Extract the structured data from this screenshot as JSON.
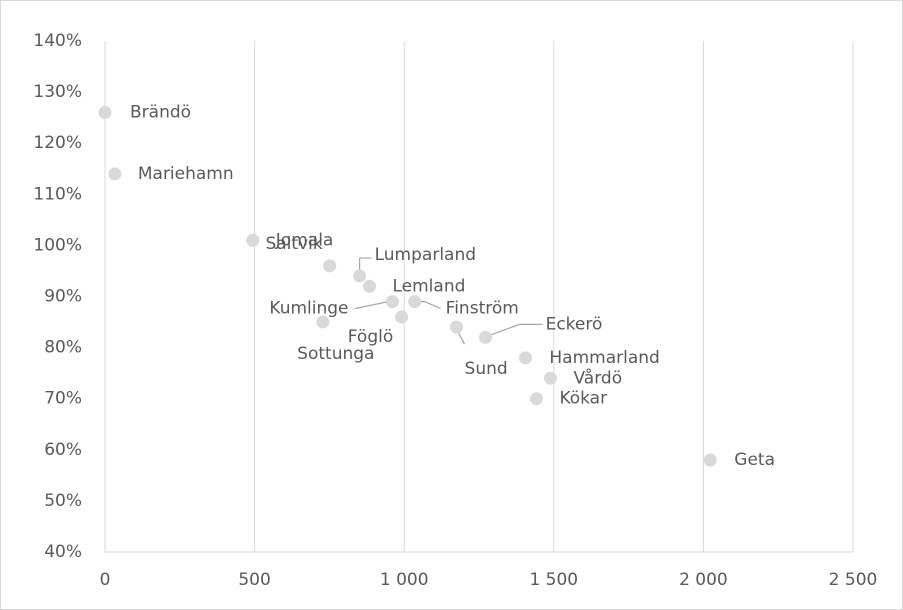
{
  "chart_data": {
    "type": "scatter",
    "labels": [
      "Brändö",
      "Mariehamn",
      "Jomala",
      "Saltvik",
      "Lumparland",
      "Lemland",
      "Kumlinge",
      "Finström",
      "Föglö",
      "Sottunga",
      "Sund",
      "Eckerö",
      "Hammarland",
      "Vårdö",
      "Kökar",
      "Geta"
    ],
    "x": [
      0,
      33,
      494,
      751,
      851,
      884,
      961,
      1035,
      991,
      728,
      1175,
      1272,
      1405,
      1489,
      1442,
      2023
    ],
    "values": [
      126,
      114,
      101,
      96,
      94,
      92,
      89,
      89,
      86,
      85,
      84,
      82,
      78,
      74,
      70,
      58
    ],
    "color": "#d9d9d9",
    "xlim": [
      0,
      2500
    ],
    "xticks": [
      0,
      500,
      {
        "value": 1000,
        "label": "1 000"
      },
      {
        "value": 1500,
        "label": "1 500"
      },
      {
        "value": 2000,
        "label": "2 000"
      },
      {
        "value": 2500,
        "label": "2 500"
      }
    ],
    "ylim": [
      40,
      140
    ],
    "yticks": [
      {
        "value": 40,
        "label": "40%"
      },
      {
        "value": 50,
        "label": "50%"
      },
      {
        "value": 60,
        "label": "60%"
      },
      {
        "value": 70,
        "label": "70%"
      },
      {
        "value": 80,
        "label": "80%"
      },
      {
        "value": 90,
        "label": "90%"
      },
      {
        "value": 100,
        "label": "100%"
      },
      {
        "value": 110,
        "label": "110%"
      },
      {
        "value": 120,
        "label": "120%"
      },
      {
        "value": 130,
        "label": "130%"
      },
      {
        "value": 140,
        "label": "140%"
      }
    ],
    "grid": "x"
  }
}
